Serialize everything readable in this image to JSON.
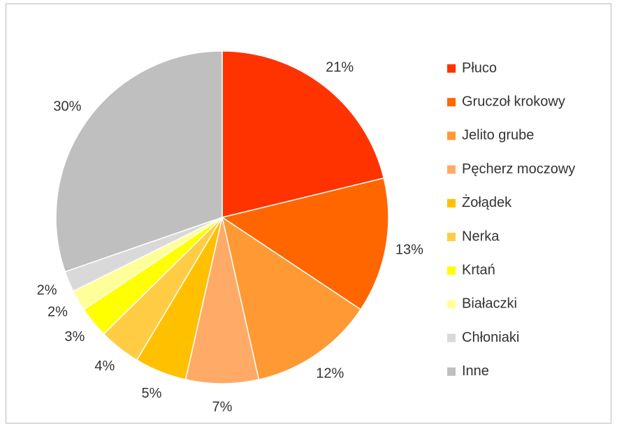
{
  "chart_data": {
    "type": "pie",
    "categories": [
      "Płuco",
      "Gruczoł krokowy",
      "Jelito grube",
      "Pęcherz moczowy",
      "Żołądek",
      "Nerka",
      "Krtań",
      "Białaczki",
      "Chłoniaki",
      "Inne"
    ],
    "values": [
      21,
      13,
      12,
      7,
      5,
      4,
      3,
      2,
      2,
      30
    ],
    "value_labels": [
      "21%",
      "13%",
      "12%",
      "7%",
      "5%",
      "4%",
      "3%",
      "2%",
      "2%",
      "30%"
    ],
    "colors": [
      "#ff3300",
      "#ff6600",
      "#ff9933",
      "#ffaa66",
      "#ffc000",
      "#ffcc44",
      "#ffff00",
      "#ffff99",
      "#d9d9d9",
      "#bfbfbf"
    ],
    "legend": "right"
  }
}
